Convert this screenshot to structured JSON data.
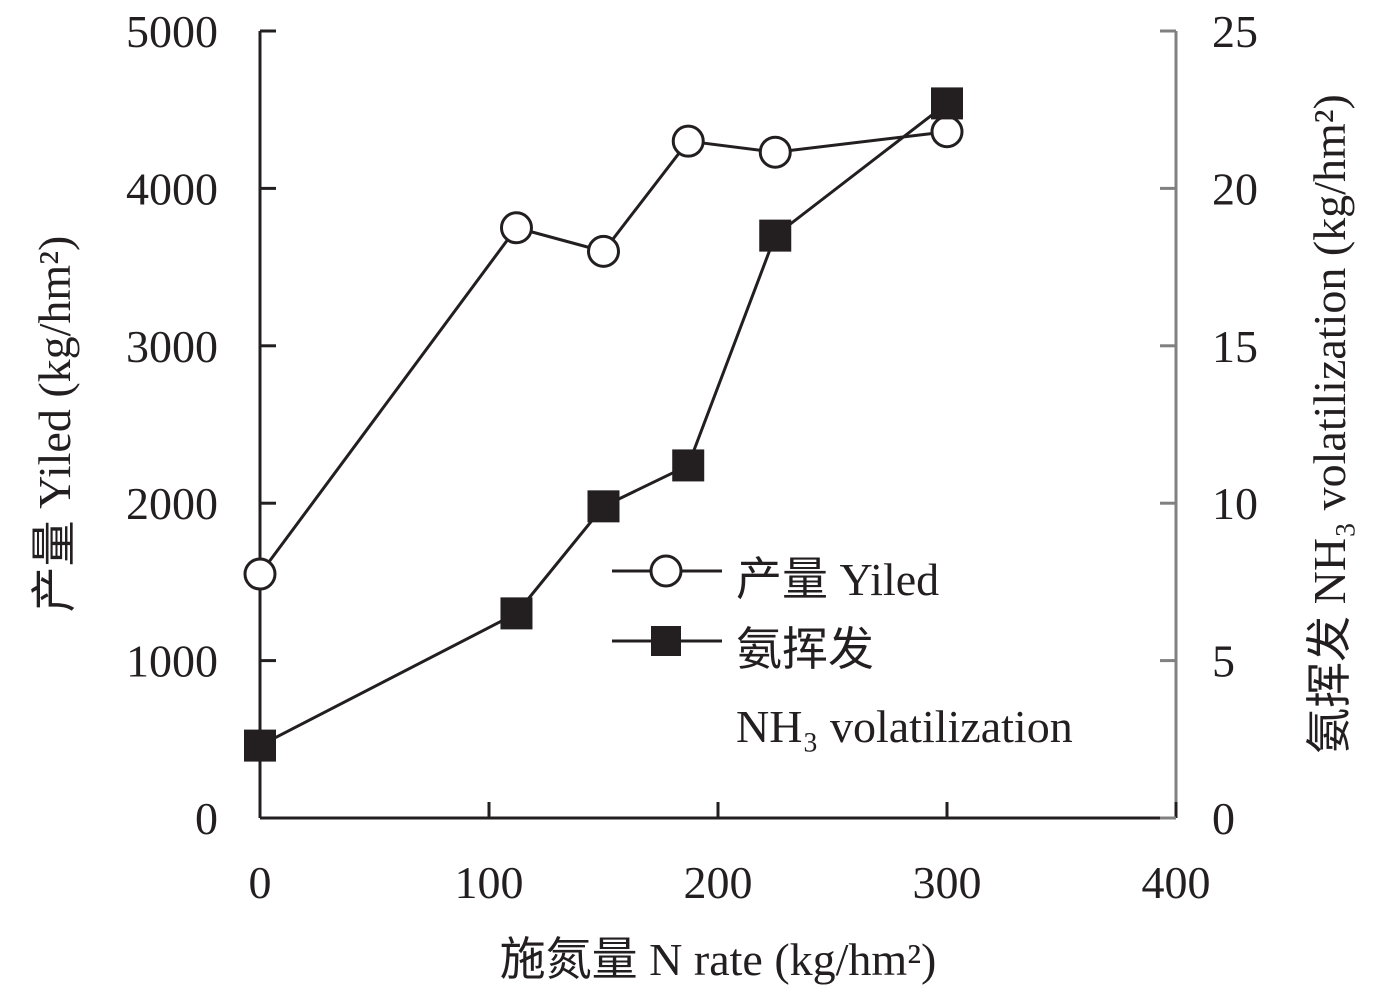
{
  "chart_data": {
    "type": "line",
    "x": [
      0,
      112,
      150,
      187,
      225,
      300
    ],
    "xlim": [
      0,
      400
    ],
    "xticks": [
      "0",
      "100",
      "200",
      "300",
      "400"
    ],
    "ylim_left": [
      0,
      5000
    ],
    "yticks_left": [
      "0",
      "1000",
      "2000",
      "3000",
      "4000",
      "5000"
    ],
    "ylim_right": [
      0,
      25
    ],
    "yticks_right": [
      "0",
      "5",
      "10",
      "15",
      "20",
      "25"
    ],
    "xlabel": "施氮量 N rate (kg/hm²)",
    "ylabel_left": "产量 Yiled (kg/hm²)",
    "ylabel_right": "氨挥发 NH₃ volatilization (kg/hm²)",
    "series": [
      {
        "name": "产量 Yiled",
        "axis": "left",
        "marker": "open-circle",
        "values": [
          1550,
          3750,
          3600,
          4300,
          4230,
          4360
        ]
      },
      {
        "name": "氨挥发 NH₃ volatilization",
        "name_line1": "氨挥发",
        "name_line2": "NH₃ volatilization",
        "axis": "right",
        "marker": "filled-square",
        "values": [
          2.3,
          6.5,
          9.9,
          11.2,
          18.5,
          22.7
        ]
      }
    ],
    "legend_position": "center-right",
    "grid": false,
    "colors": {
      "ink": "#231f20",
      "right_axis": "#808080"
    }
  }
}
